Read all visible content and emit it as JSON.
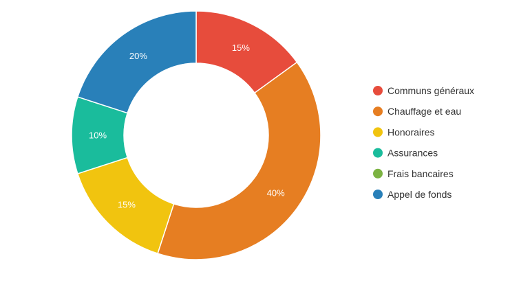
{
  "chart_data": {
    "type": "pie",
    "variant": "donut",
    "categories": [
      "Communs généraux",
      "Chauffage et eau",
      "Honoraires",
      "Assurances",
      "Frais bancaires",
      "Appel de fonds"
    ],
    "values": [
      15,
      40,
      15,
      10,
      0,
      20
    ],
    "value_labels": [
      "15%",
      "40%",
      "15%",
      "10%",
      "",
      "20%"
    ],
    "colors": [
      "#e74c3c",
      "#e67e22",
      "#f1c40f",
      "#1abc9c",
      "#7cb342",
      "#2980b9"
    ],
    "title": "",
    "legend": "right"
  }
}
